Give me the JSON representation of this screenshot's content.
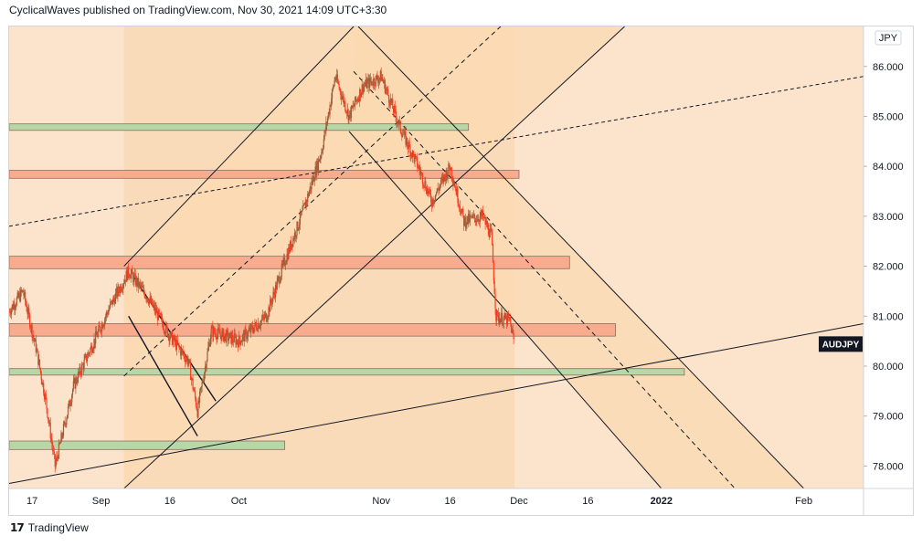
{
  "header": {
    "publisher_line": "CyclicalWaves published on TradingView.com, Nov 30, 2021 14:09 UTC+3:30"
  },
  "footer": {
    "brand": "TradingView"
  },
  "colors": {
    "background_zone": "#fbe3cc",
    "channel_fill": "#fbd9b1",
    "candle_up": "#9b5f3a",
    "candle_down": "#ff3b1f",
    "resistance_fill": "#f9ab8e",
    "support_fill": "#b7d7a6",
    "gray_zone_fill": "#cfd8b8",
    "line": "#131722"
  },
  "chart_data": {
    "type": "candlestick",
    "symbol": "AUDJPY",
    "currency": "JPY",
    "last_price_label": "AUDJPY",
    "last_price": 80.45,
    "y_axis": {
      "ticks": [
        "86.000",
        "85.000",
        "84.000",
        "83.000",
        "82.000",
        "81.000",
        "80.000",
        "79.000",
        "78.000"
      ],
      "range": [
        77.55,
        86.8
      ]
    },
    "x_axis": {
      "ticks": [
        "17",
        "Sep",
        "16",
        "Oct",
        "Nov",
        "16",
        "Dec",
        "16",
        "2022",
        "Feb"
      ],
      "range": [
        "2021-08-12",
        "2022-02-14"
      ]
    },
    "price_path": [
      [
        "2021-08-12",
        81.1
      ],
      [
        "2021-08-15",
        81.5
      ],
      [
        "2021-08-18",
        80.3
      ],
      [
        "2021-08-20",
        79.3
      ],
      [
        "2021-08-22",
        78.0
      ],
      [
        "2021-08-26",
        79.6
      ],
      [
        "2021-08-31",
        80.6
      ],
      [
        "2021-09-03",
        81.2
      ],
      [
        "2021-09-07",
        81.9
      ],
      [
        "2021-09-11",
        81.4
      ],
      [
        "2021-09-16",
        80.6
      ],
      [
        "2021-09-20",
        80.1
      ],
      [
        "2021-09-22",
        79.1
      ],
      [
        "2021-09-25",
        80.7
      ],
      [
        "2021-10-01",
        80.5
      ],
      [
        "2021-10-07",
        81.0
      ],
      [
        "2021-10-11",
        82.1
      ],
      [
        "2021-10-15",
        83.1
      ],
      [
        "2021-10-19",
        84.3
      ],
      [
        "2021-10-22",
        85.8
      ],
      [
        "2021-10-25",
        85.0
      ],
      [
        "2021-10-28",
        85.6
      ],
      [
        "2021-11-01",
        85.8
      ],
      [
        "2021-11-05",
        84.8
      ],
      [
        "2021-11-09",
        84.0
      ],
      [
        "2021-11-12",
        83.3
      ],
      [
        "2021-11-16",
        84.0
      ],
      [
        "2021-11-19",
        82.9
      ],
      [
        "2021-11-23",
        83.0
      ],
      [
        "2021-11-25",
        82.6
      ],
      [
        "2021-11-26",
        81.0
      ],
      [
        "2021-11-29",
        80.9
      ],
      [
        "2021-11-30",
        80.45
      ]
    ],
    "horizontal_zones": [
      {
        "kind": "support",
        "top": 84.85,
        "bottom": 84.72,
        "from": "2021-08-12",
        "to": "2021-11-20"
      },
      {
        "kind": "resistance",
        "top": 83.92,
        "bottom": 83.76,
        "from": "2021-08-12",
        "to": "2021-12-01"
      },
      {
        "kind": "resistance",
        "top": 82.2,
        "bottom": 81.95,
        "from": "2021-08-12",
        "to": "2021-12-12"
      },
      {
        "kind": "resistance",
        "top": 80.85,
        "bottom": 80.6,
        "from": "2021-08-12",
        "to": "2021-12-22"
      },
      {
        "kind": "support",
        "top": 79.95,
        "bottom": 79.82,
        "from": "2021-08-12",
        "to": "2022-01-06"
      },
      {
        "kind": "support",
        "top": 78.5,
        "bottom": 78.33,
        "from": "2021-08-12",
        "to": "2021-10-11"
      }
    ],
    "grid": false,
    "legend": "none"
  }
}
